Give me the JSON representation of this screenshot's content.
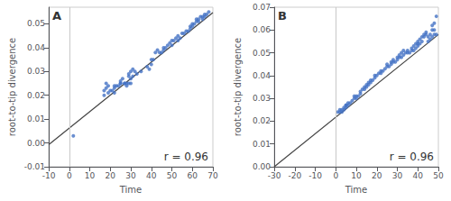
{
  "chart_data": [
    {
      "type": "scatter",
      "title": "A",
      "annotations": [
        "r = 0.96"
      ],
      "xlabel": "Time",
      "ylabel": "root-to-tip divergence",
      "xlim": [
        -10,
        70
      ],
      "ylim": [
        -0.01,
        0.057
      ],
      "xticks": [
        -10,
        0,
        10,
        20,
        30,
        40,
        50,
        60,
        70
      ],
      "yticks": [
        -0.01,
        {
          "value": 0,
          "label": "0.00"
        },
        0.01,
        0.02,
        0.03,
        0.04,
        0.05
      ],
      "grid": false,
      "series": [
        {
          "type": "vline",
          "color": "#c8c8c8",
          "values": [
            0
          ]
        },
        {
          "type": "line",
          "color": "#444444",
          "x": [
            -10,
            70
          ],
          "values": [
            -0.0007,
            0.0547
          ]
        },
        {
          "type": "scatter",
          "color": "#4472C4",
          "x": [
            2,
            17,
            17,
            18,
            18,
            19,
            19,
            20,
            21,
            22,
            22,
            22,
            23,
            24,
            25,
            25,
            25,
            26,
            27,
            27,
            28,
            28,
            29,
            29,
            29,
            30,
            30,
            30,
            31,
            31,
            32,
            33,
            35,
            38,
            39,
            40,
            40,
            41,
            42,
            43,
            44,
            45,
            46,
            46,
            47,
            48,
            49,
            50,
            50,
            51,
            52,
            53,
            53,
            54,
            55,
            56,
            57,
            58,
            59,
            59,
            60,
            60,
            61,
            62,
            62,
            63,
            63,
            64,
            65,
            65,
            66,
            66,
            67,
            68
          ],
          "values": [
            0.003,
            0.02,
            0.022,
            0.023,
            0.025,
            0.021,
            0.024,
            0.022,
            0.022,
            0.021,
            0.023,
            0.024,
            0.024,
            0.024,
            0.025,
            0.026,
            0.025,
            0.027,
            0.025,
            0.025,
            0.024,
            0.025,
            0.025,
            0.028,
            0.029,
            0.027,
            0.025,
            0.03,
            0.028,
            0.031,
            0.03,
            0.029,
            0.03,
            0.032,
            0.031,
            0.033,
            0.035,
            0.035,
            0.038,
            0.039,
            0.038,
            0.038,
            0.039,
            0.04,
            0.04,
            0.041,
            0.042,
            0.041,
            0.043,
            0.043,
            0.044,
            0.043,
            0.045,
            0.044,
            0.046,
            0.046,
            0.047,
            0.047,
            0.048,
            0.049,
            0.049,
            0.05,
            0.05,
            0.051,
            0.052,
            0.051,
            0.052,
            0.053,
            0.052,
            0.053,
            0.053,
            0.054,
            0.054,
            0.055
          ]
        }
      ]
    },
    {
      "type": "scatter",
      "title": "B",
      "annotations": [
        "r = 0.96"
      ],
      "xlabel": "Time",
      "ylabel": "root-to-tip divergence",
      "xlim": [
        -30,
        50
      ],
      "ylim": [
        0,
        0.07
      ],
      "xticks": [
        -30,
        -20,
        -10,
        0,
        10,
        20,
        30,
        40,
        50
      ],
      "yticks": [
        {
          "value": 0,
          "label": "0.00"
        },
        0.01,
        0.02,
        0.03,
        0.04,
        0.05,
        0.06,
        0.07
      ],
      "grid": false,
      "series": [
        {
          "type": "vline",
          "color": "#c8c8c8",
          "values": [
            0
          ]
        },
        {
          "type": "line",
          "color": "#444444",
          "x": [
            -30,
            50
          ],
          "values": [
            0.0,
            0.058
          ]
        },
        {
          "type": "scatter",
          "color": "#4472C4",
          "x": [
            1,
            2,
            2,
            3,
            3,
            4,
            4,
            5,
            5,
            5,
            6,
            6,
            7,
            8,
            9,
            9,
            10,
            10,
            11,
            12,
            12,
            13,
            14,
            14,
            15,
            15,
            16,
            16,
            17,
            17,
            18,
            19,
            19,
            20,
            21,
            22,
            22,
            23,
            24,
            25,
            25,
            26,
            27,
            27,
            28,
            28,
            29,
            30,
            30,
            31,
            31,
            32,
            32,
            33,
            33,
            34,
            35,
            35,
            36,
            37,
            37,
            38,
            38,
            39,
            39,
            40,
            40,
            40,
            41,
            41,
            42,
            42,
            43,
            43,
            44,
            44,
            45,
            45,
            46,
            46,
            47,
            47,
            47,
            48,
            48,
            48,
            49,
            49
          ],
          "values": [
            0.024,
            0.024,
            0.025,
            0.024,
            0.025,
            0.025,
            0.026,
            0.026,
            0.027,
            0.027,
            0.027,
            0.028,
            0.028,
            0.029,
            0.03,
            0.031,
            0.03,
            0.031,
            0.031,
            0.032,
            0.033,
            0.034,
            0.034,
            0.035,
            0.035,
            0.036,
            0.036,
            0.037,
            0.037,
            0.038,
            0.038,
            0.039,
            0.04,
            0.04,
            0.041,
            0.041,
            0.042,
            0.042,
            0.043,
            0.044,
            0.045,
            0.044,
            0.045,
            0.046,
            0.046,
            0.047,
            0.046,
            0.047,
            0.048,
            0.048,
            0.049,
            0.048,
            0.05,
            0.049,
            0.051,
            0.05,
            0.05,
            0.051,
            0.05,
            0.051,
            0.052,
            0.051,
            0.053,
            0.052,
            0.054,
            0.053,
            0.054,
            0.055,
            0.054,
            0.056,
            0.055,
            0.057,
            0.057,
            0.058,
            0.058,
            0.059,
            0.055,
            0.057,
            0.056,
            0.058,
            0.057,
            0.06,
            0.062,
            0.058,
            0.06,
            0.063,
            0.066,
            0.058
          ]
        }
      ]
    }
  ]
}
